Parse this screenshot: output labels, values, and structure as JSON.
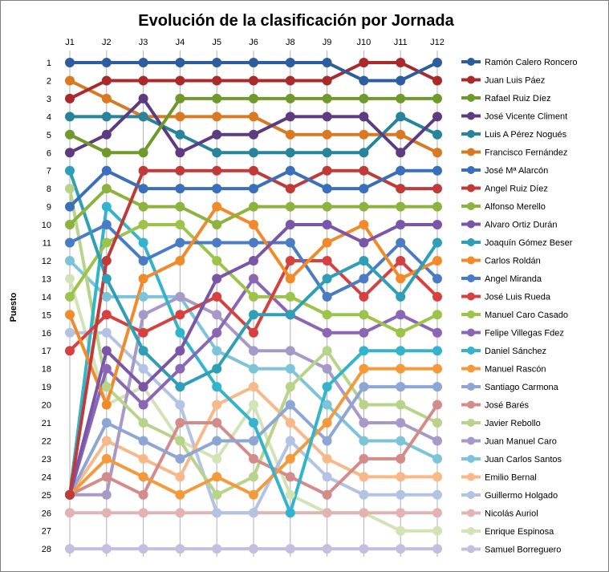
{
  "chart_data": {
    "type": "line",
    "title": "Evolución de la clasificación por Jornada",
    "ylabel": "Puesto",
    "xlabel": "",
    "categories": [
      "J1",
      "J2",
      "J3",
      "J4",
      "J5",
      "J6",
      "J8",
      "J9",
      "J10",
      "J11",
      "J12"
    ],
    "ylim": [
      1,
      28
    ],
    "y_inverted": true,
    "y_ticks": [
      1,
      2,
      3,
      4,
      5,
      6,
      7,
      8,
      9,
      10,
      11,
      12,
      13,
      14,
      15,
      16,
      17,
      18,
      19,
      20,
      21,
      22,
      23,
      24,
      25,
      26,
      27,
      28
    ],
    "x_axis_position": "top",
    "grid": {
      "vertical": true,
      "horizontal": false
    },
    "legend_position": "right",
    "series": [
      {
        "name": "Ramón Calero Roncero",
        "color": "#2e5d9f",
        "values": [
          1,
          1,
          1,
          1,
          1,
          1,
          1,
          1,
          2,
          2,
          1
        ]
      },
      {
        "name": "Juan Luis Páez",
        "color": "#a82a2a",
        "values": [
          3,
          2,
          2,
          2,
          2,
          2,
          2,
          2,
          1,
          1,
          2
        ]
      },
      {
        "name": "Rafael Ruiz Díez",
        "color": "#6f9a2b",
        "values": [
          5,
          6,
          6,
          3,
          3,
          3,
          3,
          3,
          3,
          3,
          3
        ]
      },
      {
        "name": "José Vicente Climent",
        "color": "#5c3b80",
        "values": [
          6,
          5,
          3,
          6,
          5,
          5,
          4,
          4,
          4,
          6,
          4
        ]
      },
      {
        "name": "Luis A Pérez Nogués",
        "color": "#27849a",
        "values": [
          4,
          4,
          4,
          5,
          6,
          6,
          6,
          6,
          6,
          4,
          5
        ]
      },
      {
        "name": "Francisco Fernández",
        "color": "#d97a22",
        "values": [
          2,
          3,
          4,
          4,
          4,
          4,
          5,
          5,
          5,
          5,
          6
        ]
      },
      {
        "name": "José Mª Alarcón",
        "color": "#3a6fbb",
        "values": [
          9,
          7,
          8,
          8,
          8,
          8,
          7,
          8,
          8,
          7,
          7
        ]
      },
      {
        "name": "Angel Ruiz Díez",
        "color": "#c03a38",
        "values": [
          25,
          12,
          7,
          7,
          7,
          7,
          8,
          7,
          7,
          8,
          8
        ]
      },
      {
        "name": "Alfonso Merello",
        "color": "#8cb33d",
        "values": [
          10,
          8,
          9,
          9,
          10,
          9,
          9,
          9,
          9,
          9,
          9
        ]
      },
      {
        "name": "Alvaro Ortiz Durán",
        "color": "#7a55a8",
        "values": [
          25,
          17,
          19,
          17,
          13,
          12,
          10,
          10,
          11,
          10,
          10
        ]
      },
      {
        "name": "Joaquín Gómez Beser",
        "color": "#2f9fb8",
        "values": [
          7,
          13,
          17,
          19,
          18,
          15,
          15,
          13,
          12,
          14,
          11
        ]
      },
      {
        "name": "Carlos Roldán",
        "color": "#f08a2a",
        "values": [
          15,
          20,
          13,
          12,
          9,
          10,
          13,
          11,
          10,
          13,
          12
        ]
      },
      {
        "name": "Angel Miranda",
        "color": "#4a7cc6",
        "values": [
          11,
          10,
          12,
          11,
          11,
          11,
          11,
          14,
          13,
          11,
          13
        ]
      },
      {
        "name": "José Luis Rueda",
        "color": "#d6413f",
        "values": [
          17,
          15,
          16,
          15,
          14,
          16,
          12,
          12,
          14,
          12,
          14
        ]
      },
      {
        "name": "Manuel Caro Casado",
        "color": "#9cc44a",
        "values": [
          14,
          11,
          10,
          10,
          12,
          14,
          14,
          15,
          15,
          16,
          15
        ]
      },
      {
        "name": "Felipe Villegas Fdez",
        "color": "#8b66b5",
        "values": [
          25,
          18,
          20,
          18,
          16,
          13,
          15,
          16,
          16,
          15,
          16
        ]
      },
      {
        "name": "Daniel Sánchez",
        "color": "#33b4cc",
        "values": [
          25,
          9,
          11,
          16,
          19,
          21,
          26,
          19,
          17,
          17,
          17
        ]
      },
      {
        "name": "Manuel Rascón",
        "color": "#f59a3a",
        "values": [
          25,
          23,
          24,
          25,
          24,
          25,
          23,
          21,
          18,
          18,
          18
        ]
      },
      {
        "name": "Santiago Carmona",
        "color": "#8ea6d3",
        "values": [
          25,
          21,
          22,
          23,
          22,
          22,
          20,
          22,
          19,
          19,
          19
        ]
      },
      {
        "name": "José Barés",
        "color": "#d38c8a",
        "values": [
          25,
          24,
          25,
          21,
          21,
          23,
          24,
          25,
          23,
          23,
          20
        ]
      },
      {
        "name": "Javier Rebollo",
        "color": "#b8d48a",
        "values": [
          8,
          19,
          21,
          22,
          25,
          24,
          19,
          17,
          20,
          20,
          21
        ]
      },
      {
        "name": "Juan Manuel Caro",
        "color": "#a89ac8",
        "values": [
          25,
          25,
          15,
          14,
          15,
          17,
          17,
          18,
          21,
          21,
          22
        ]
      },
      {
        "name": "Juan Carlos Santos",
        "color": "#7ec4d8",
        "values": [
          12,
          14,
          14,
          14,
          17,
          18,
          18,
          20,
          22,
          22,
          23
        ]
      },
      {
        "name": "Emilio Bernal",
        "color": "#f7b88a",
        "values": [
          25,
          22,
          23,
          24,
          20,
          19,
          21,
          23,
          24,
          24,
          24
        ]
      },
      {
        "name": "Guillermo Holgado",
        "color": "#b3c3e3",
        "values": [
          16,
          16,
          18,
          20,
          26,
          26,
          22,
          24,
          25,
          25,
          25
        ]
      },
      {
        "name": "Nicolás Auriol",
        "color": "#e3b3b2",
        "values": [
          26,
          26,
          26,
          26,
          26,
          26,
          26,
          26,
          26,
          26,
          26
        ]
      },
      {
        "name": "Enrique Espinosa",
        "color": "#d2e3b6",
        "values": [
          13,
          20,
          19,
          22,
          23,
          20,
          25,
          26,
          26,
          27,
          27
        ]
      },
      {
        "name": "Samuel Borreguero",
        "color": "#c6bede",
        "values": [
          28,
          28,
          28,
          28,
          28,
          28,
          28,
          28,
          28,
          28,
          28
        ]
      }
    ]
  }
}
